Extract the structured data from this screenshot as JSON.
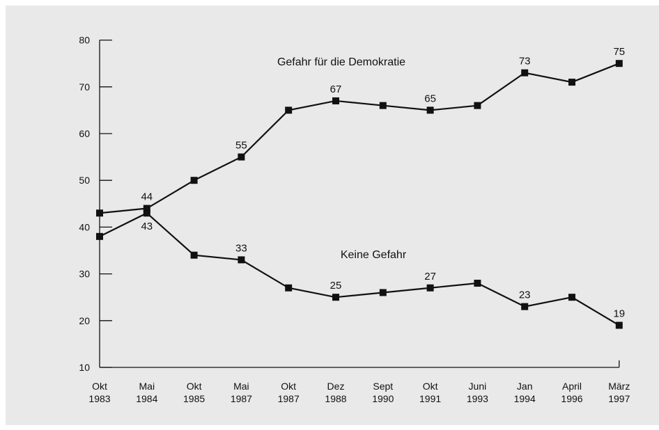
{
  "chart_data": {
    "type": "line",
    "categories": [
      [
        "Okt",
        "1983"
      ],
      [
        "Mai",
        "1984"
      ],
      [
        "Okt",
        "1985"
      ],
      [
        "Mai",
        "1987"
      ],
      [
        "Okt",
        "1987"
      ],
      [
        "Dez",
        "1988"
      ],
      [
        "Sept",
        "1990"
      ],
      [
        "Okt",
        "1991"
      ],
      [
        "Juni",
        "1993"
      ],
      [
        "Jan",
        "1994"
      ],
      [
        "April",
        "1996"
      ],
      [
        "März",
        "1997"
      ]
    ],
    "series": [
      {
        "name": "Gefahr für die Demokratie",
        "values": [
          43,
          44,
          50,
          55,
          65,
          67,
          66,
          65,
          66,
          73,
          71,
          75
        ],
        "labels": [
          null,
          "44",
          null,
          "55",
          null,
          "67",
          null,
          "65",
          null,
          "73",
          null,
          "75"
        ]
      },
      {
        "name": "Keine Gefahr",
        "values": [
          38,
          43,
          34,
          33,
          27,
          25,
          26,
          27,
          28,
          23,
          25,
          19
        ],
        "labels": [
          null,
          "43",
          null,
          "33",
          null,
          "25",
          null,
          "27",
          null,
          "23",
          null,
          "19"
        ]
      }
    ],
    "yticks": [
      "10",
      "20",
      "30",
      "40",
      "50",
      "60",
      "70",
      "80"
    ],
    "ylim": [
      10,
      80
    ],
    "grid": false,
    "colors": {
      "line": "#111111",
      "background": "#e9e9e9"
    }
  }
}
